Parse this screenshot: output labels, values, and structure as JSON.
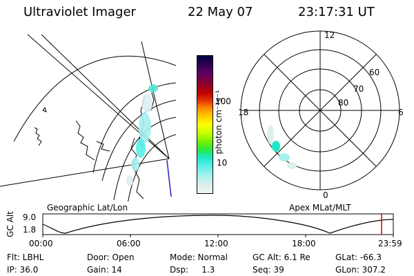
{
  "header": {
    "instrument": "Ultraviolet Imager",
    "date": "22 May 07",
    "time": "23:17:31 UT"
  },
  "colorbar": {
    "unit_label": "photon cm⁻²s⁻¹",
    "ticks": [
      "100",
      "10"
    ],
    "colors": [
      "#000040",
      "#2c0050",
      "#5a0064",
      "#8a0030",
      "#c00000",
      "#e63a00",
      "#ff8a00",
      "#ffc400",
      "#ffff00",
      "#c8ff00",
      "#7cf000",
      "#2ce83c",
      "#1ce8c8",
      "#58f0ea",
      "#a6f0ee",
      "#dcf0ee",
      "#eef6f4"
    ]
  },
  "geo_map": {
    "caption": "Geographic Lat/Lon"
  },
  "polar_plot": {
    "caption": "Apex MLat/MLT",
    "mlt_labels": {
      "top": "12",
      "left": "18",
      "right": "6",
      "bottom": "0"
    },
    "mlat_labels": [
      "60",
      "70",
      "80"
    ]
  },
  "altitude_plot": {
    "ylabel": "GC Alt",
    "ymax_label": "9.0",
    "ymin_label": "1.8",
    "xticks": [
      "00:00",
      "06:00",
      "12:00",
      "18:00",
      "23:59"
    ],
    "current_marker_color": "#cc0000"
  },
  "info": {
    "filter": "Flt: LBHL",
    "ip": "IP: 36.0",
    "door": "Door: Open",
    "gain": "Gain: 14",
    "mode": "Mode: Normal",
    "dsp": "Dsp:     1.3",
    "gc_alt": "GC Alt: 6.1 Re",
    "seq": "Seq: 39",
    "glat": "GLat: -66.3",
    "glon": "GLon: 307.2"
  }
}
